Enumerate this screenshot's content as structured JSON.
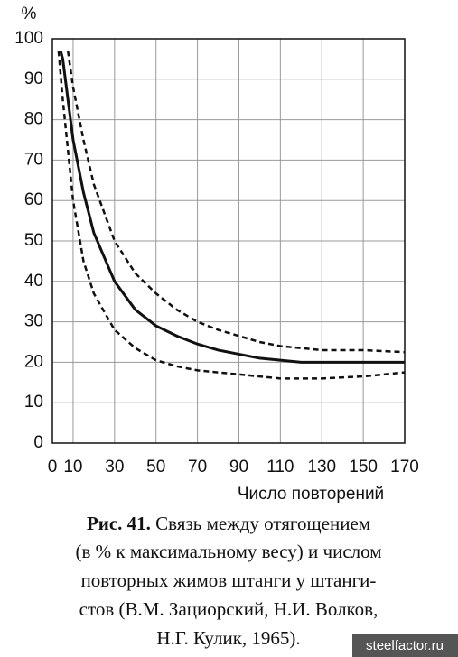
{
  "chart_data": {
    "type": "line",
    "ylabel": "%",
    "xlabel": "Число повторений",
    "xlim": [
      0,
      170
    ],
    "ylim": [
      0,
      100
    ],
    "xticks": [
      0,
      10,
      30,
      50,
      70,
      90,
      110,
      130,
      150,
      170
    ],
    "yticks": [
      0,
      10,
      20,
      30,
      40,
      50,
      60,
      70,
      80,
      90,
      100
    ],
    "grid": true,
    "series": [
      {
        "color": "#111111",
        "dashed": false,
        "x": [
          4,
          5,
          10,
          15,
          20,
          30,
          40,
          50,
          60,
          70,
          80,
          90,
          100,
          110,
          120,
          130,
          150,
          170
        ],
        "values": [
          97,
          95,
          75,
          62,
          52,
          40,
          33,
          29,
          26.5,
          24.5,
          23,
          22,
          21,
          20.5,
          20,
          20,
          20,
          20
        ]
      },
      {
        "color": "#111111",
        "dashed": true,
        "x": [
          7.5,
          10,
          15,
          20,
          30,
          40,
          50,
          60,
          70,
          80,
          90,
          100,
          110,
          120,
          130,
          150,
          170
        ],
        "values": [
          97,
          88,
          75,
          64,
          50,
          42,
          37,
          33,
          30,
          28,
          26.5,
          25,
          24,
          23.5,
          23,
          23,
          22.5
        ]
      },
      {
        "color": "#111111",
        "dashed": true,
        "x": [
          3,
          5,
          10,
          15,
          20,
          30,
          40,
          50,
          60,
          70,
          80,
          90,
          100,
          110,
          120,
          130,
          150,
          170
        ],
        "values": [
          97,
          85,
          60,
          45,
          37,
          28,
          23.5,
          20.5,
          19,
          18,
          17.5,
          17,
          16.5,
          16,
          16,
          16,
          16.5,
          17.5
        ]
      }
    ]
  },
  "caption": {
    "label": "Рис. 41.",
    "lines": [
      "Связь между отягощением",
      "(в % к максимальному весу) и числом",
      "повторных жимов штанги у штанги-",
      "стов (В.М. Зациорский, Н.И. Волков,",
      "Н.Г. Кулик, 1965)."
    ]
  },
  "watermark": "steelfactor.ru"
}
